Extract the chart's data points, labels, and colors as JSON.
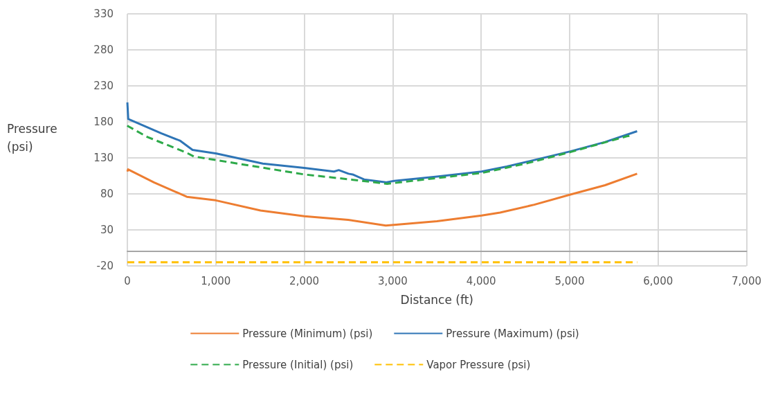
{
  "chart_data": {
    "type": "line",
    "xlabel": "Distance (ft)",
    "ylabel": "Pressure (psi)",
    "xlim": [
      0,
      7000
    ],
    "xticks": [
      {
        "value": 0,
        "label": "0"
      },
      {
        "value": 1000,
        "label": "1,000"
      },
      {
        "value": 2000,
        "label": "2,000"
      },
      {
        "value": 3000,
        "label": "3,000"
      },
      {
        "value": 4000,
        "label": "4,000"
      },
      {
        "value": 5000,
        "label": "5,000"
      },
      {
        "value": 6000,
        "label": "6,000"
      },
      {
        "value": 7000,
        "label": "7,000"
      }
    ],
    "ylim": [
      -20,
      330
    ],
    "yticks": [
      -20,
      30,
      80,
      130,
      180,
      230,
      280,
      330
    ],
    "grid": true,
    "legend": "bottom",
    "marker": "none",
    "series": [
      {
        "name": "Pressure (Minimum) (psi)",
        "color": "#ed7d31",
        "line_style": "solid",
        "x": [
          0,
          8,
          300,
          672,
          1000,
          1505,
          2000,
          2496,
          2922,
          3500,
          4005,
          4214,
          4600,
          5008,
          5400,
          5763
        ],
        "values": [
          111,
          114,
          96,
          76,
          71,
          57,
          49,
          44,
          36,
          42,
          50,
          54,
          65,
          79,
          92,
          108
        ]
      },
      {
        "name": "Pressure (Maximum) (psi)",
        "color": "#2e75b6",
        "line_style": "solid",
        "x": [
          0,
          10,
          385,
          594,
          737,
          1008,
          1531,
          2000,
          2336,
          2390,
          2500,
          2547,
          2677,
          2922,
          3016,
          3500,
          4005,
          4290,
          4600,
          5008,
          5400,
          5763
        ],
        "values": [
          207,
          184,
          164,
          154,
          141,
          136,
          122,
          116,
          111,
          113,
          108,
          107,
          100,
          96,
          98,
          104,
          111,
          118,
          127,
          139,
          152,
          167
        ]
      },
      {
        "name": "Pressure (Initial) (psi)",
        "color": "#2eaa4a",
        "line_style": "dashed",
        "x": [
          0,
          8,
          227,
          672,
          750,
          1000,
          1500,
          2000,
          2521,
          2938,
          3500,
          4005,
          4500,
          5008,
          5646,
          5700
        ],
        "values": [
          175,
          174,
          159,
          137,
          132,
          127,
          117,
          107,
          100,
          94,
          102,
          109,
          122,
          138,
          160,
          161
        ]
      },
      {
        "name": "Vapor Pressure (psi)",
        "color": "#ffc000",
        "line_style": "dashed",
        "x": [
          0,
          5763
        ],
        "values": [
          -15,
          -15
        ]
      }
    ]
  }
}
